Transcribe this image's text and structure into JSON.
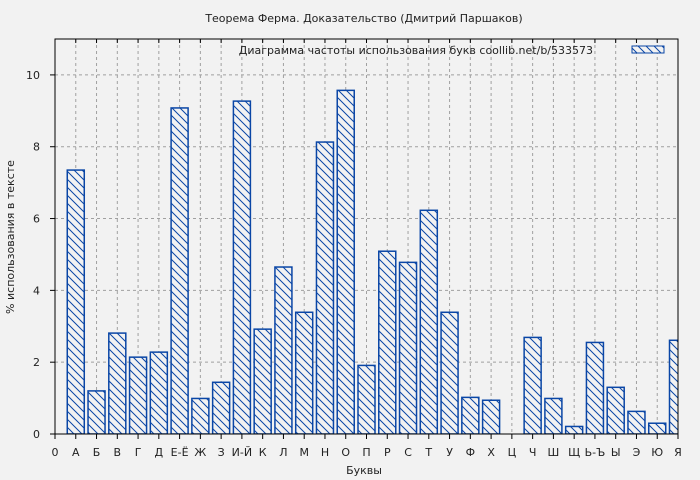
{
  "chart_data": {
    "type": "bar",
    "title": "Теорема Ферма. Доказательство (Дмитрий Паршаков)",
    "legend": {
      "label": "Диаграмма частоты использования букв  coollib.net/b/533573",
      "position": "top-right"
    },
    "xlabel": "Буквы",
    "ylabel": "% использования в тексте",
    "ylim": [
      0,
      11
    ],
    "yticks": [
      0,
      2,
      4,
      6,
      8,
      10
    ],
    "grid": true,
    "x_tick_labels": [
      "0",
      "А",
      "Б",
      "В",
      "Г",
      "Д",
      "Е-Ё",
      "Ж",
      "З",
      "И-Й",
      "К",
      "Л",
      "М",
      "Н",
      "О",
      "П",
      "Р",
      "С",
      "Т",
      "У",
      "Ф",
      "Х",
      "Ц",
      "Ч",
      "Ш",
      "Щ",
      "Ь-Ъ",
      "Ы",
      "Э",
      "Ю",
      "Я"
    ],
    "categories": [
      "А",
      "Б",
      "В",
      "Г",
      "Д",
      "Е-Ё",
      "Ж",
      "З",
      "И-Й",
      "К",
      "Л",
      "М",
      "Н",
      "О",
      "П",
      "Р",
      "С",
      "Т",
      "У",
      "Ф",
      "Х",
      "Ц",
      "Ч",
      "Ш",
      "Щ",
      "Ь-Ъ",
      "Ы",
      "Э",
      "Ю",
      "Я"
    ],
    "values": [
      7.35,
      1.2,
      2.81,
      2.14,
      2.28,
      9.08,
      0.99,
      1.44,
      9.27,
      2.92,
      4.65,
      3.39,
      8.13,
      9.57,
      1.91,
      5.09,
      4.78,
      6.23,
      3.39,
      1.02,
      0.94,
      0,
      2.69,
      0.99,
      0.21,
      2.55,
      1.3,
      0.63,
      0.3,
      2.61
    ],
    "colors": {
      "bar_border": "#0a46a6",
      "hatch": "#0a46a6",
      "background": "#f2f2f2",
      "grid": "#a0a0a0"
    }
  }
}
